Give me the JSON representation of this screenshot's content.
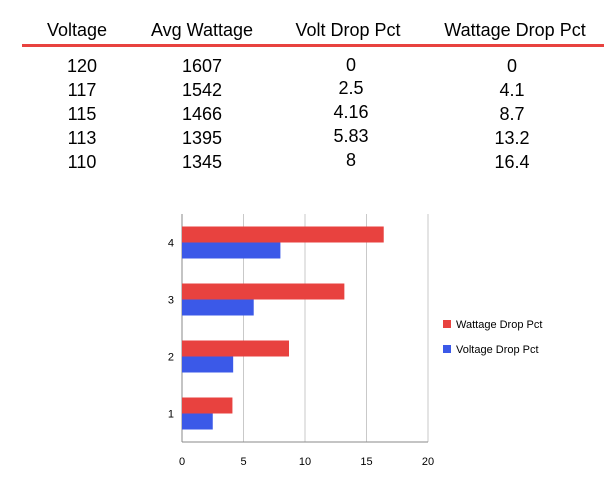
{
  "table": {
    "headers": [
      "Voltage",
      "Avg Wattage",
      "Volt Drop Pct",
      "Wattage Drop Pct"
    ],
    "rows": [
      [
        "120",
        "1607",
        "0",
        "0"
      ],
      [
        "117",
        "1542",
        "2.5",
        "4.1"
      ],
      [
        "115",
        "1466",
        "4.16",
        "8.7"
      ],
      [
        "113",
        "1395",
        "5.83",
        "13.2"
      ],
      [
        "110",
        "1345",
        "8",
        "16.4"
      ]
    ],
    "rule_color": "#e8423f"
  },
  "chart_data": {
    "type": "bar",
    "orientation": "horizontal",
    "categories": [
      "1",
      "2",
      "3",
      "4"
    ],
    "series": [
      {
        "name": "Wattage Drop Pct",
        "color": "#e8423f",
        "values": [
          4.1,
          8.7,
          13.2,
          16.4
        ]
      },
      {
        "name": "Voltage Drop Pct",
        "color": "#3b59e8",
        "values": [
          2.5,
          4.16,
          5.83,
          8
        ]
      }
    ],
    "xlim": [
      0,
      20
    ],
    "xticks": [
      "0",
      "5",
      "10",
      "15",
      "20"
    ],
    "grid": true,
    "legend": "right"
  }
}
